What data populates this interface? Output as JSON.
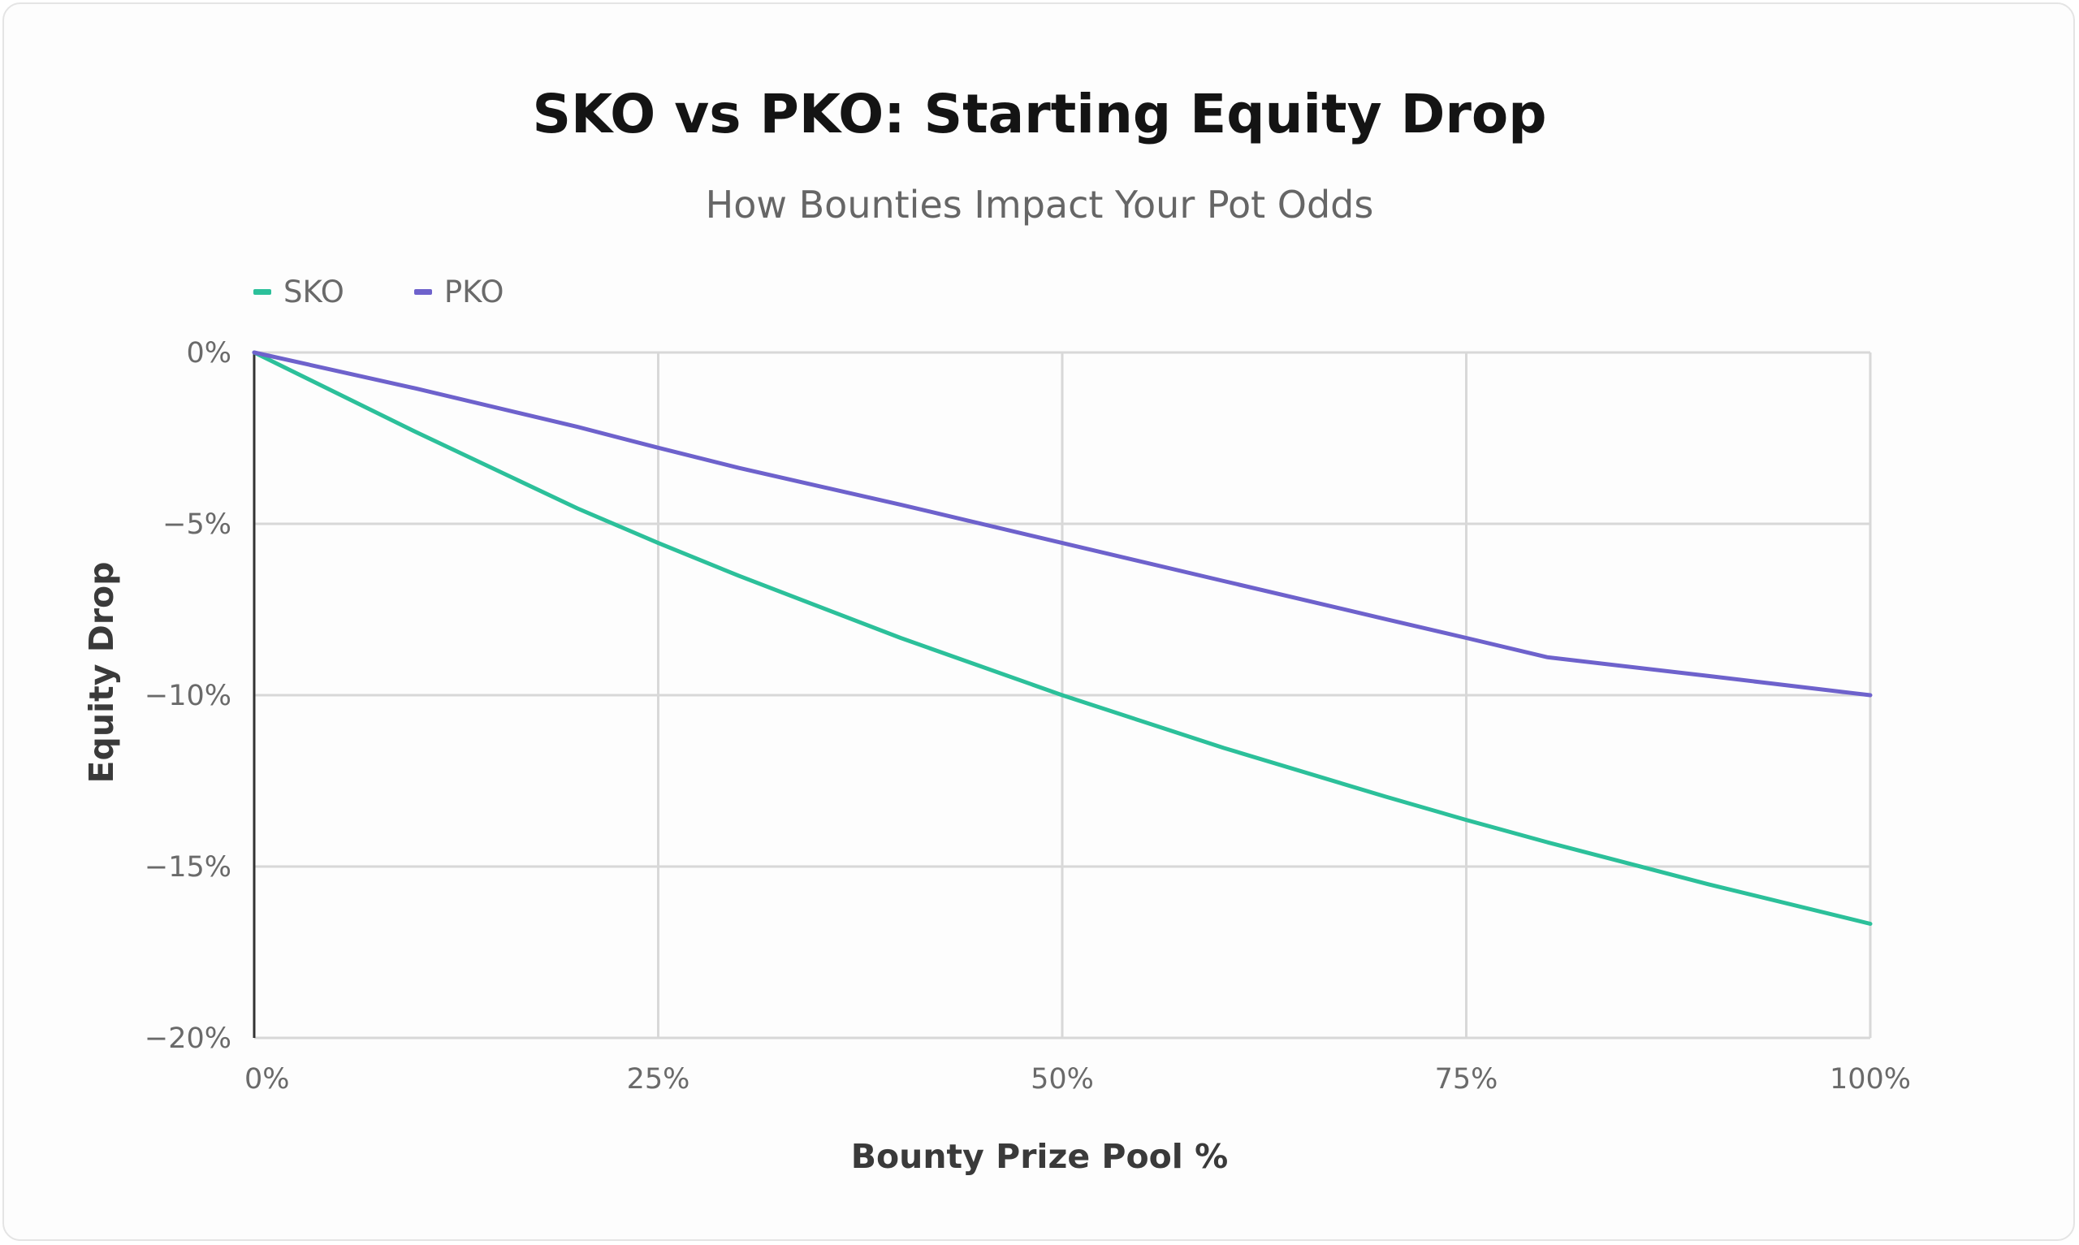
{
  "chart_data": {
    "type": "line",
    "title": "SKO vs PKO: Starting Equity Drop",
    "subtitle": "How Bounties Impact Your Pot Odds",
    "xlabel": "Bounty Prize Pool %",
    "ylabel": "Equity Drop",
    "x": [
      0,
      10,
      20,
      25,
      30,
      40,
      50,
      60,
      70,
      75,
      80,
      90,
      100
    ],
    "series": [
      {
        "name": "SKO",
        "color": "#2cc09a",
        "values": [
          0,
          -2.32,
          -4.55,
          -5.56,
          -6.52,
          -8.33,
          -10.0,
          -11.54,
          -12.96,
          -13.64,
          -14.29,
          -15.52,
          -16.67
        ]
      },
      {
        "name": "PKO",
        "color": "#6e62cc",
        "values": [
          0,
          -1.05,
          -2.17,
          -2.78,
          -3.37,
          -4.44,
          -5.56,
          -6.67,
          -7.78,
          -8.33,
          -8.89,
          -9.44,
          -10.0
        ]
      }
    ],
    "xticks": [
      "0%",
      "25%",
      "50%",
      "75%",
      "100%"
    ],
    "yticks": [
      "0%",
      "−5%",
      "−10%",
      "−15%",
      "−20%"
    ],
    "xlim": [
      0,
      100
    ],
    "ylim": [
      -20,
      0
    ],
    "grid": true,
    "legend_position": "top-left"
  }
}
